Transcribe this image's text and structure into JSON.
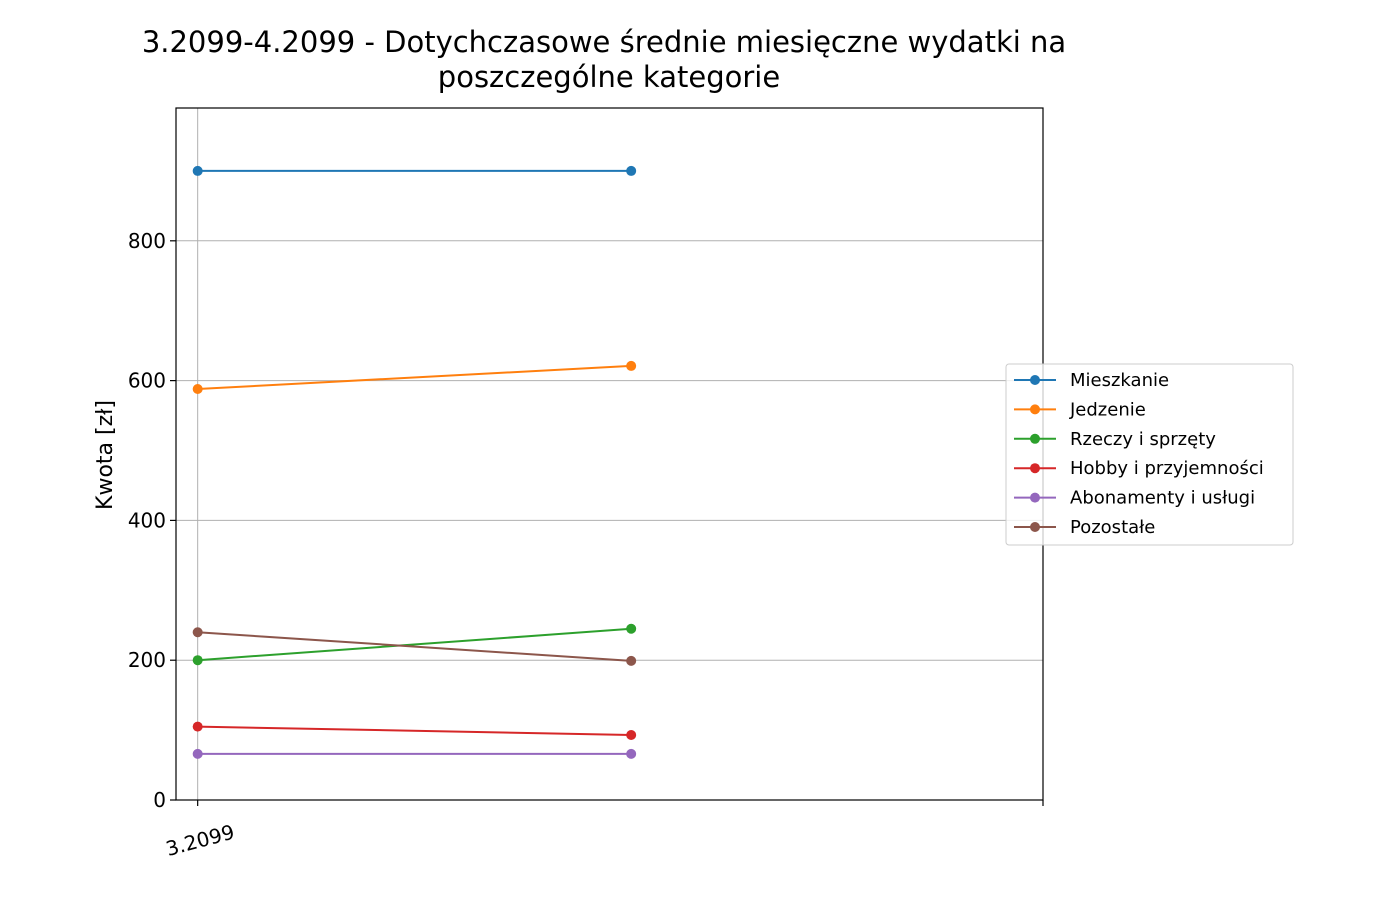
{
  "chart_data": {
    "type": "line",
    "title_lines": [
      "3.2099-4.2099 - Dotychczasowe średnie miesięczne wydatki na",
      "poszczególne kategorie"
    ],
    "xlabel": "",
    "ylabel": "Kwota [zł]",
    "x": [
      0,
      1
    ],
    "xlim": [
      -0.05,
      1.95
    ],
    "x_tick_positions": [
      0,
      1.95
    ],
    "x_tick_labels": [
      "3.2099",
      ""
    ],
    "ylim": [
      0,
      990
    ],
    "y_ticks": [
      0,
      200,
      400,
      600,
      800
    ],
    "grid": true,
    "legend_position": "right",
    "series": [
      {
        "name": "Mieszkanie",
        "color": "#1f77b4",
        "values": [
          900,
          900
        ]
      },
      {
        "name": "Jedzenie",
        "color": "#ff7f0e",
        "values": [
          588,
          621
        ]
      },
      {
        "name": "Rzeczy i sprzęty",
        "color": "#2ca02c",
        "values": [
          200,
          245
        ]
      },
      {
        "name": "Hobby i przyjemności",
        "color": "#d62728",
        "values": [
          105,
          93
        ]
      },
      {
        "name": "Abonamenty i usługi",
        "color": "#9467bd",
        "values": [
          66,
          66
        ]
      },
      {
        "name": "Pozostałe",
        "color": "#8c564b",
        "values": [
          240,
          199
        ]
      }
    ]
  }
}
